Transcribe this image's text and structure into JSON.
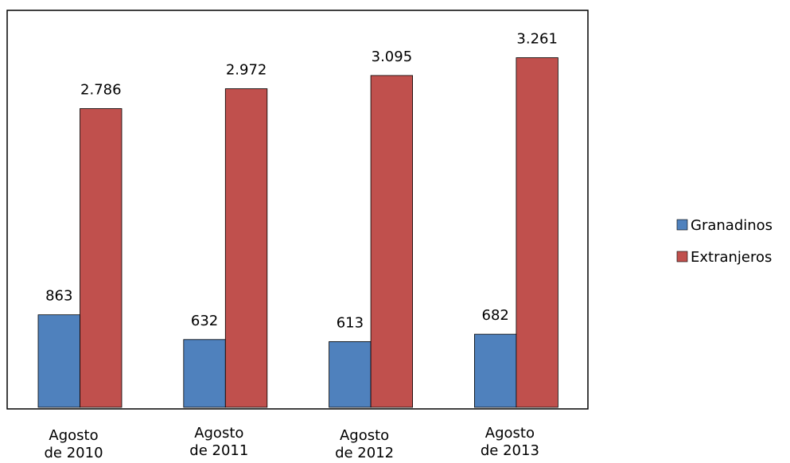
{
  "chart_data": {
    "type": "bar",
    "categories": [
      [
        "Agosto",
        "de 2010"
      ],
      [
        "Agosto",
        "de 2011"
      ],
      [
        "Agosto",
        "de 2012"
      ],
      [
        "Agosto",
        "de 2013"
      ]
    ],
    "series": [
      {
        "name": "Granadinos",
        "color": "#4F81BD",
        "values": [
          863,
          632,
          613,
          682
        ],
        "labels": [
          "863",
          "632",
          "613",
          "682"
        ]
      },
      {
        "name": "Extranjeros",
        "color": "#C0504D",
        "values": [
          2786,
          2972,
          3095,
          3261
        ],
        "labels": [
          "2.786",
          "2.972",
          "3.095",
          "3.261"
        ]
      }
    ],
    "ylim": [
      0,
      3500
    ],
    "grid": false,
    "legend_position": "right"
  }
}
